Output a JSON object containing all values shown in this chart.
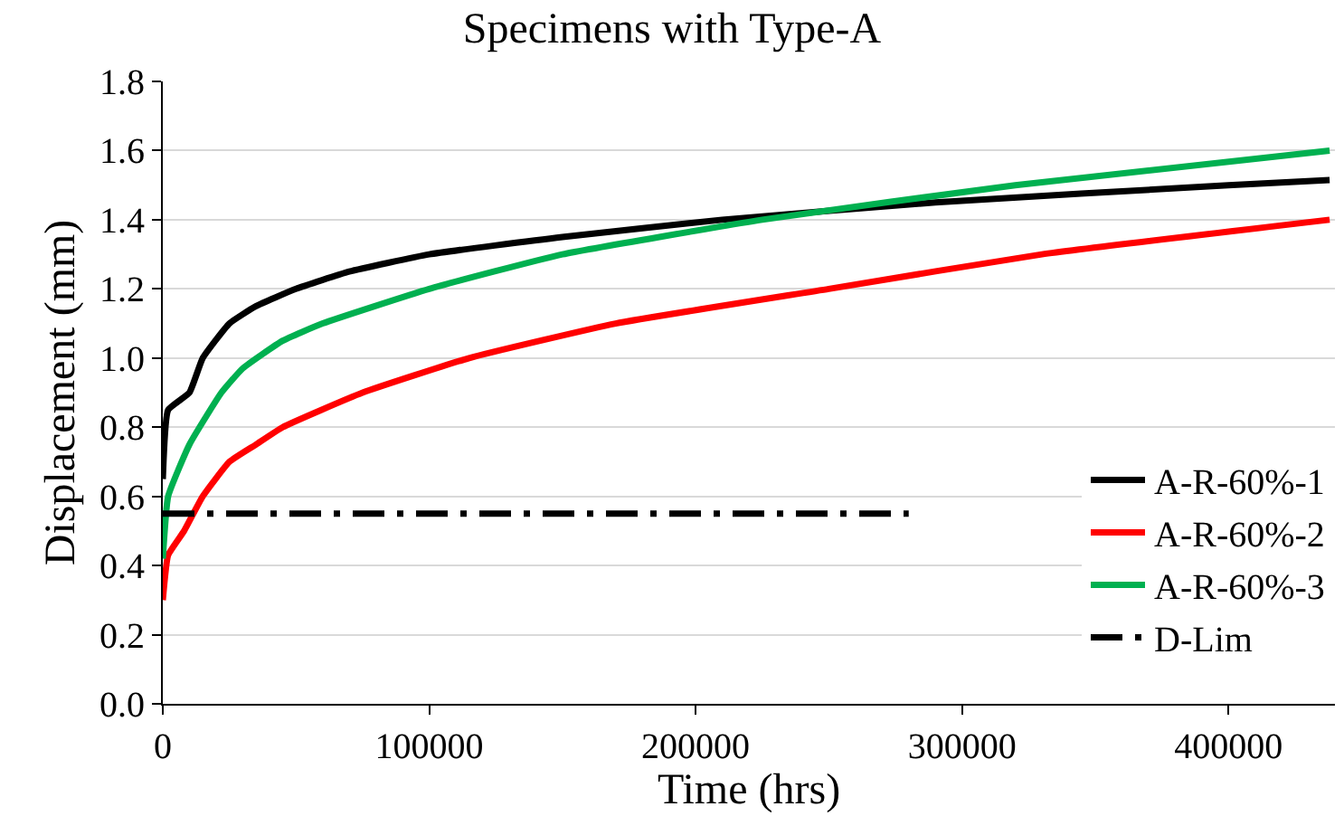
{
  "chart_data": {
    "type": "line",
    "title": "Specimens with Type-A",
    "xlabel": "Time (hrs)",
    "ylabel": "Displacement (mm)",
    "xlim": [
      0,
      440000
    ],
    "xticks": [
      0,
      100000,
      200000,
      300000,
      400000
    ],
    "ylim": [
      0,
      1.8
    ],
    "yticks": [
      {
        "value": 0,
        "label": "0.0"
      },
      0.2,
      0.4,
      0.6,
      0.8,
      {
        "value": 1,
        "label": "1.0"
      },
      1.2,
      1.4,
      1.6,
      1.8
    ],
    "grid": "y",
    "legend": "bottom right",
    "marker": "none",
    "line_style": "solid",
    "series": [
      {
        "name": "A-R-60%-1",
        "color": "#000000",
        "x": [
          0,
          2000,
          10000,
          15000,
          25000,
          35000,
          50000,
          70000,
          100000,
          150000,
          210000,
          290000,
          400000,
          438000
        ],
        "values": [
          0.65,
          0.85,
          0.9,
          1.0,
          1.1,
          1.15,
          1.2,
          1.25,
          1.3,
          1.35,
          1.4,
          1.45,
          1.5,
          1.515
        ]
      },
      {
        "name": "A-R-60%-2",
        "color": "#ff0000",
        "x": [
          0,
          2000,
          8000,
          15000,
          25000,
          35000,
          45000,
          75000,
          115000,
          170000,
          250000,
          330000,
          438000
        ],
        "values": [
          0.3,
          0.43,
          0.5,
          0.6,
          0.7,
          0.75,
          0.8,
          0.9,
          1.0,
          1.1,
          1.2,
          1.3,
          1.4
        ]
      },
      {
        "name": "A-R-60%-3",
        "color": "#00b050",
        "x": [
          0,
          2000,
          10000,
          22000,
          30000,
          45000,
          60000,
          100000,
          150000,
          225000,
          320000,
          438000
        ],
        "values": [
          0.42,
          0.6,
          0.75,
          0.9,
          0.97,
          1.05,
          1.1,
          1.2,
          1.3,
          1.4,
          1.5,
          1.6
        ]
      },
      {
        "name": "D-Lim",
        "color": "#000000",
        "line_style": "dashdot",
        "x": [
          0,
          280000
        ],
        "values": [
          0.55,
          0.55
        ]
      }
    ]
  }
}
